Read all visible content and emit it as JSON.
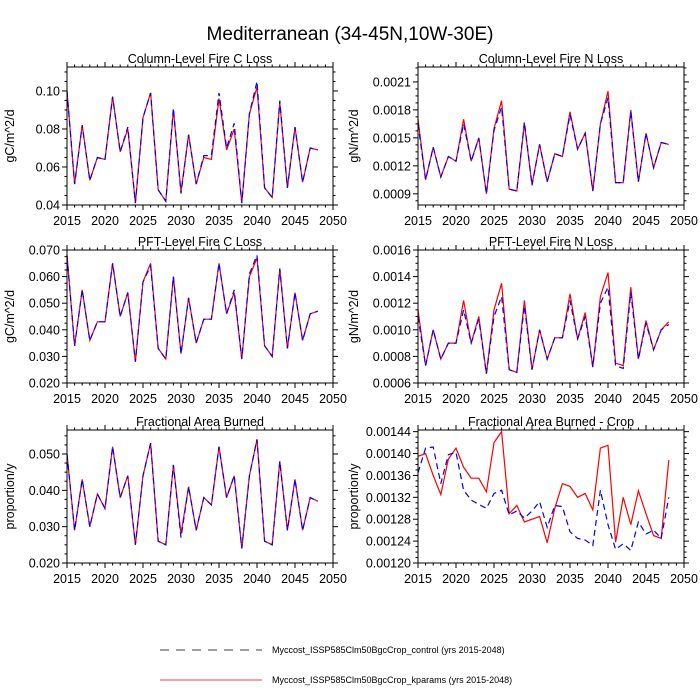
{
  "title": "Mediterranean (34-45N,10W-30E)",
  "legend": [
    {
      "label": "Myccost_ISSP585Clm50BgcCrop_control (yrs 2015-2048)",
      "color": "#000000",
      "style": "dashed"
    },
    {
      "label": "Myccost_ISSP585Clm50BgcCrop_kparams (yrs 2015-2048)",
      "color": "#ff0000",
      "style": "solid"
    }
  ],
  "colors": {
    "control": "#0000ff",
    "kparams": "#ff0000"
  },
  "chart_data": [
    {
      "type": "line",
      "title": "Column-Level Fire C Loss",
      "ylabel": "gC/m^2/d",
      "xlim": [
        2015,
        2050
      ],
      "xticks": [
        "2015",
        "2020",
        "2025",
        "2030",
        "2035",
        "2040",
        "2045",
        "2050"
      ],
      "ylim": [
        0.04,
        0.1126
      ],
      "yticks": [
        "0.04",
        "0.06",
        "0.08",
        "0.10"
      ],
      "x_start": 2015,
      "series": [
        {
          "name": "control",
          "values": [
            0.1,
            0.051,
            0.082,
            0.053,
            0.065,
            0.064,
            0.097,
            0.068,
            0.081,
            0.041,
            0.086,
            0.099,
            0.048,
            0.042,
            0.091,
            0.046,
            0.077,
            0.051,
            0.066,
            0.066,
            0.099,
            0.07,
            0.083,
            0.041,
            0.088,
            0.105,
            0.049,
            0.044,
            0.095,
            0.049,
            0.081,
            0.052,
            0.07,
            0.069
          ]
        },
        {
          "name": "kparams",
          "values": [
            0.1,
            0.051,
            0.082,
            0.053,
            0.065,
            0.064,
            0.097,
            0.068,
            0.08,
            0.041,
            0.086,
            0.099,
            0.048,
            0.042,
            0.09,
            0.047,
            0.077,
            0.051,
            0.065,
            0.064,
            0.096,
            0.069,
            0.08,
            0.041,
            0.088,
            0.102,
            0.049,
            0.044,
            0.094,
            0.049,
            0.081,
            0.052,
            0.07,
            0.069
          ]
        }
      ]
    },
    {
      "type": "line",
      "title": "Column-Level Fire N Loss",
      "ylabel": "gN/m^2/d",
      "xlim": [
        2015,
        2050
      ],
      "xticks": [
        "2015",
        "2020",
        "2025",
        "2030",
        "2035",
        "2040",
        "2045",
        "2050"
      ],
      "ylim": [
        0.00078,
        0.00226
      ],
      "yticks": [
        "0.0009",
        "0.0012",
        "0.0015",
        "0.0018",
        "0.0021"
      ],
      "x_start": 2015,
      "series": [
        {
          "name": "control",
          "values": [
            0.00165,
            0.00105,
            0.0014,
            0.00108,
            0.0013,
            0.00125,
            0.00165,
            0.00125,
            0.0015,
            0.0009,
            0.00158,
            0.00183,
            0.00095,
            0.00093,
            0.00167,
            0.00099,
            0.00143,
            0.00103,
            0.00133,
            0.0013,
            0.00175,
            0.00138,
            0.00155,
            0.00093,
            0.00165,
            0.00193,
            0.00102,
            0.00102,
            0.00178,
            0.00103,
            0.00155,
            0.00118,
            0.00145,
            0.00143
          ]
        },
        {
          "name": "kparams",
          "values": [
            0.0017,
            0.00105,
            0.0014,
            0.00108,
            0.0013,
            0.00125,
            0.0017,
            0.00125,
            0.0015,
            0.0009,
            0.0016,
            0.0019,
            0.00095,
            0.00093,
            0.00165,
            0.001,
            0.00143,
            0.00103,
            0.00133,
            0.0013,
            0.00178,
            0.00138,
            0.00155,
            0.00093,
            0.00165,
            0.002,
            0.00102,
            0.00102,
            0.0018,
            0.00103,
            0.00155,
            0.00118,
            0.00145,
            0.00143
          ]
        }
      ]
    },
    {
      "type": "line",
      "title": "PFT-Level Fire C Loss",
      "ylabel": "gC/m^2/d",
      "xlim": [
        2015,
        2050
      ],
      "xticks": [
        "2015",
        "2020",
        "2025",
        "2030",
        "2035",
        "2040",
        "2045",
        "2050"
      ],
      "ylim": [
        0.02,
        0.07
      ],
      "yticks": [
        "0.020",
        "0.030",
        "0.040",
        "0.050",
        "0.060",
        "0.070"
      ],
      "x_start": 2015,
      "series": [
        {
          "name": "control",
          "values": [
            0.068,
            0.034,
            0.055,
            0.036,
            0.043,
            0.043,
            0.065,
            0.045,
            0.054,
            0.028,
            0.058,
            0.064,
            0.033,
            0.029,
            0.06,
            0.031,
            0.052,
            0.035,
            0.044,
            0.044,
            0.065,
            0.046,
            0.055,
            0.029,
            0.061,
            0.068,
            0.034,
            0.03,
            0.063,
            0.033,
            0.054,
            0.036,
            0.046,
            0.047
          ]
        },
        {
          "name": "kparams",
          "values": [
            0.068,
            0.034,
            0.055,
            0.036,
            0.043,
            0.043,
            0.065,
            0.045,
            0.054,
            0.028,
            0.058,
            0.065,
            0.033,
            0.029,
            0.06,
            0.031,
            0.052,
            0.035,
            0.044,
            0.044,
            0.065,
            0.046,
            0.054,
            0.029,
            0.06,
            0.067,
            0.034,
            0.03,
            0.063,
            0.033,
            0.054,
            0.036,
            0.046,
            0.047
          ]
        }
      ]
    },
    {
      "type": "line",
      "title": "PFT-Level Fire N Loss",
      "ylabel": "gN/m^2/d",
      "xlim": [
        2015,
        2050
      ],
      "xticks": [
        "2015",
        "2020",
        "2025",
        "2030",
        "2035",
        "2040",
        "2045",
        "2050"
      ],
      "ylim": [
        0.0006,
        0.0016
      ],
      "yticks": [
        "0.0006",
        "0.0008",
        "0.0010",
        "0.0012",
        "0.0014",
        "0.0016"
      ],
      "x_start": 2015,
      "series": [
        {
          "name": "control",
          "values": [
            0.0011,
            0.00073,
            0.001,
            0.00078,
            0.0009,
            0.0009,
            0.00115,
            0.0009,
            0.00108,
            0.00067,
            0.0011,
            0.00125,
            0.0007,
            0.00068,
            0.00118,
            0.0007,
            0.001,
            0.00078,
            0.00094,
            0.00094,
            0.00122,
            0.00093,
            0.0011,
            0.00072,
            0.0012,
            0.00132,
            0.00073,
            0.00071,
            0.00128,
            0.00078,
            0.00105,
            0.00085,
            0.001,
            0.00104
          ]
        },
        {
          "name": "kparams",
          "values": [
            0.00115,
            0.00073,
            0.001,
            0.00078,
            0.0009,
            0.0009,
            0.00122,
            0.0009,
            0.0011,
            0.00067,
            0.00115,
            0.00135,
            0.0007,
            0.00068,
            0.00122,
            0.0007,
            0.001,
            0.00078,
            0.00094,
            0.00094,
            0.00127,
            0.00093,
            0.00113,
            0.00072,
            0.00125,
            0.00143,
            0.00075,
            0.00073,
            0.00132,
            0.00078,
            0.00107,
            0.00085,
            0.001,
            0.00106
          ]
        }
      ]
    },
    {
      "type": "line",
      "title": "Fractional Area Burned",
      "ylabel": "proportion/y",
      "xlim": [
        2015,
        2050
      ],
      "xticks": [
        "2015",
        "2020",
        "2025",
        "2030",
        "2035",
        "2040",
        "2045",
        "2050"
      ],
      "ylim": [
        0.02,
        0.0566
      ],
      "yticks": [
        "0.020",
        "0.030",
        "0.040",
        "0.050"
      ],
      "x_start": 2015,
      "series": [
        {
          "name": "control",
          "values": [
            0.05,
            0.029,
            0.043,
            0.03,
            0.039,
            0.035,
            0.052,
            0.038,
            0.044,
            0.025,
            0.044,
            0.053,
            0.026,
            0.025,
            0.047,
            0.027,
            0.041,
            0.029,
            0.038,
            0.036,
            0.052,
            0.038,
            0.044,
            0.024,
            0.044,
            0.054,
            0.026,
            0.025,
            0.048,
            0.029,
            0.043,
            0.029,
            0.038,
            0.037
          ]
        },
        {
          "name": "kparams",
          "values": [
            0.05,
            0.029,
            0.043,
            0.03,
            0.039,
            0.035,
            0.052,
            0.038,
            0.044,
            0.025,
            0.044,
            0.053,
            0.026,
            0.025,
            0.047,
            0.028,
            0.041,
            0.029,
            0.038,
            0.036,
            0.052,
            0.038,
            0.044,
            0.024,
            0.044,
            0.054,
            0.026,
            0.025,
            0.048,
            0.029,
            0.043,
            0.029,
            0.038,
            0.037
          ]
        }
      ]
    },
    {
      "type": "line",
      "title": "Fractional Area Burned - Crop",
      "ylabel": "proportion/y",
      "xlim": [
        2015,
        2050
      ],
      "xticks": [
        "2015",
        "2020",
        "2025",
        "2030",
        "2035",
        "2040",
        "2045",
        "2050"
      ],
      "ylim": [
        0.0012,
        0.001443
      ],
      "yticks": [
        "0.00120",
        "0.00124",
        "0.00128",
        "0.00132",
        "0.00136",
        "0.00140",
        "0.00144"
      ],
      "x_start": 2015,
      "series": [
        {
          "name": "control",
          "values": [
            0.001365,
            0.00141,
            0.001412,
            0.001345,
            0.001398,
            0.001402,
            0.001333,
            0.001315,
            0.001307,
            0.0013,
            0.001327,
            0.001333,
            0.001288,
            0.001295,
            0.001282,
            0.001295,
            0.001312,
            0.001265,
            0.001305,
            0.001303,
            0.001257,
            0.001245,
            0.001242,
            0.001232,
            0.001333,
            0.00127,
            0.001225,
            0.001235,
            0.001223,
            0.001275,
            0.001253,
            0.00126,
            0.001245,
            0.00132
          ]
        },
        {
          "name": "kparams",
          "values": [
            0.001395,
            0.0014,
            0.00136,
            0.001325,
            0.00139,
            0.00141,
            0.001375,
            0.001355,
            0.001355,
            0.00133,
            0.00142,
            0.00144,
            0.00129,
            0.001305,
            0.001275,
            0.00128,
            0.001285,
            0.001237,
            0.0013,
            0.001345,
            0.00134,
            0.00132,
            0.001327,
            0.001297,
            0.00141,
            0.001415,
            0.001238,
            0.00132,
            0.00127,
            0.001332,
            0.00129,
            0.00125,
            0.001245,
            0.001388
          ]
        }
      ]
    }
  ]
}
